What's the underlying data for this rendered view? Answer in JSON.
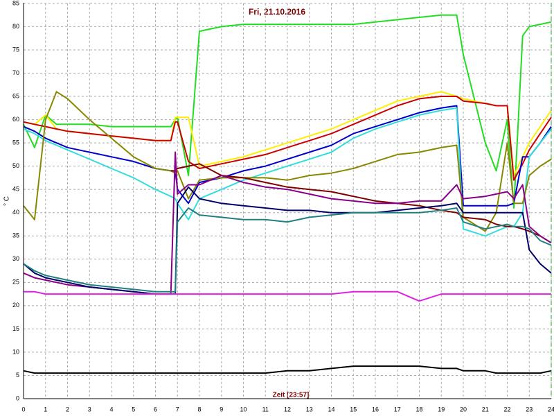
{
  "chart_data": {
    "type": "line",
    "title": "Fri, 21.10.2016",
    "xlabel": "Zeit [23:57]",
    "ylabel": "° C",
    "x": [
      0,
      0.5,
      1,
      1.5,
      2,
      3,
      4,
      5,
      6,
      6.7,
      6.9,
      7,
      7.5,
      8,
      9,
      10,
      11,
      12,
      13,
      14,
      15,
      16,
      17,
      18,
      19,
      19.7,
      20,
      21,
      21.5,
      22,
      22.3,
      22.7,
      23,
      23.5,
      24
    ],
    "series": [
      {
        "color": "#22dd22",
        "values": [
          59,
          54,
          61,
          59,
          59,
          59,
          58.5,
          58.5,
          58.5,
          58.5,
          60,
          60.5,
          48,
          79,
          80,
          80.5,
          80.5,
          80.5,
          80.5,
          80.5,
          80.5,
          81,
          81.5,
          82,
          82.5,
          82.5,
          74,
          55,
          49,
          60,
          41,
          78,
          80,
          80.5,
          81
        ]
      },
      {
        "color": "#ffee00",
        "values": [
          59.5,
          59,
          61,
          58,
          57.5,
          57,
          56.5,
          56,
          55.5,
          55.5,
          60.5,
          60.5,
          60.5,
          50,
          51,
          52,
          53.5,
          55,
          56.5,
          58,
          60,
          62,
          64,
          65,
          66,
          65,
          64.5,
          63.5,
          63,
          63,
          48,
          52,
          55,
          58.5,
          62
        ]
      },
      {
        "color": "#cc0000",
        "values": [
          59.5,
          59,
          58.5,
          58,
          57.5,
          57,
          56.5,
          56,
          55.5,
          55.5,
          59.5,
          59.5,
          51,
          49.5,
          50.5,
          51.5,
          52.5,
          54,
          55.5,
          57,
          59,
          61,
          63,
          64.5,
          65,
          65,
          64,
          63.5,
          63,
          63,
          47,
          50.5,
          53.5,
          57,
          60.5
        ]
      },
      {
        "color": "#0000cc",
        "values": [
          58.5,
          57.5,
          56,
          55,
          54,
          53,
          52,
          51,
          49.5,
          49,
          49,
          45,
          42,
          46.5,
          47.5,
          49,
          50,
          51.5,
          53,
          54.5,
          57,
          58.5,
          60,
          61.5,
          62.5,
          63,
          41.5,
          41.5,
          41.5,
          41.5,
          42,
          52,
          52,
          55,
          58.5
        ]
      },
      {
        "color": "#33dddd",
        "values": [
          58,
          57,
          55.5,
          54.5,
          53.5,
          51.5,
          49.5,
          47.5,
          45,
          43.5,
          43,
          42,
          38.5,
          43,
          45,
          47,
          48.5,
          50,
          51.5,
          53,
          56,
          58,
          59.5,
          61,
          62,
          62.5,
          36.5,
          35,
          36,
          37,
          37,
          40,
          52,
          55,
          58
        ]
      },
      {
        "color": "#888800",
        "values": [
          41.5,
          38.5,
          60,
          66,
          64.5,
          60,
          56,
          52,
          49.5,
          49,
          48.5,
          49,
          43,
          47,
          47.5,
          47.5,
          47.5,
          47,
          48,
          48.5,
          49.5,
          51,
          52.5,
          53,
          54,
          54.5,
          39,
          36,
          40,
          55,
          42,
          42,
          48,
          50,
          51.5
        ]
      },
      {
        "color": "#800000",
        "values": [
          null,
          null,
          null,
          null,
          null,
          null,
          null,
          null,
          null,
          49,
          49,
          49.5,
          50,
          50.5,
          48,
          47.5,
          46.5,
          45.5,
          45,
          44.5,
          43.5,
          42.5,
          42,
          41.5,
          40.5,
          40,
          39,
          38.5,
          37.5,
          37,
          37,
          36.5,
          36,
          35,
          33.5
        ]
      },
      {
        "color": "#880088",
        "values": [
          27,
          26,
          25.5,
          25,
          24.5,
          24,
          23.5,
          23,
          22.5,
          22.5,
          53,
          44,
          46,
          46,
          48,
          46.5,
          45.5,
          45,
          44,
          43,
          42.5,
          42,
          42,
          42.5,
          42.5,
          46,
          43,
          43.5,
          44,
          44.5,
          43,
          46,
          37,
          35,
          33.5
        ]
      },
      {
        "color": "#000066",
        "values": [
          29,
          27,
          26,
          25.5,
          25,
          24,
          23.5,
          23,
          22.5,
          22.5,
          22.5,
          42,
          45.5,
          43,
          42,
          41.5,
          41,
          40.5,
          40.5,
          40,
          40,
          40,
          40.5,
          41,
          41.5,
          42,
          40,
          40,
          40,
          40,
          40,
          40,
          32,
          29,
          27
        ]
      },
      {
        "color": "#208080",
        "values": [
          29,
          27.5,
          26.5,
          26,
          25.5,
          24.5,
          24,
          23.5,
          23,
          23,
          23,
          38,
          41,
          39.5,
          39,
          38.5,
          38.5,
          38,
          39,
          39.5,
          40,
          40,
          40,
          40,
          40.5,
          41,
          38,
          36.5,
          37,
          37.5,
          37,
          37,
          36.5,
          34,
          33
        ]
      },
      {
        "color": "#dd22dd",
        "values": [
          23,
          23,
          22.5,
          22.5,
          22.5,
          22.5,
          22.5,
          22.5,
          22.5,
          22.5,
          22.5,
          22.5,
          22.5,
          22.5,
          22.5,
          22.5,
          22.5,
          22.5,
          22.5,
          22.5,
          23,
          23,
          23,
          21,
          22.5,
          22.5,
          22.5,
          22.5,
          22.5,
          22.5,
          22.5,
          22.5,
          22.5,
          22.5,
          22.5
        ]
      },
      {
        "color": "#000000",
        "values": [
          6,
          5.5,
          5.5,
          5.5,
          5.5,
          5.5,
          5.5,
          5.5,
          5.5,
          5.5,
          5.5,
          5.5,
          5.5,
          5.5,
          5.5,
          5.5,
          5.5,
          6,
          6,
          6.5,
          7,
          7,
          7,
          7,
          6.5,
          6.5,
          6,
          6,
          5.5,
          5.5,
          5.5,
          5.5,
          5.5,
          5.5,
          6
        ]
      }
    ],
    "xlim": [
      0,
      24
    ],
    "xticks": [
      0,
      1,
      2,
      3,
      4,
      5,
      6,
      7,
      8,
      9,
      10,
      11,
      12,
      13,
      14,
      15,
      16,
      17,
      18,
      19,
      20,
      21,
      22,
      23,
      24
    ],
    "ylim": [
      0,
      85
    ],
    "yticks": [
      0,
      5,
      10,
      15,
      20,
      25,
      30,
      35,
      40,
      45,
      50,
      55,
      60,
      65,
      70,
      75,
      80,
      85
    ],
    "grid": true
  }
}
